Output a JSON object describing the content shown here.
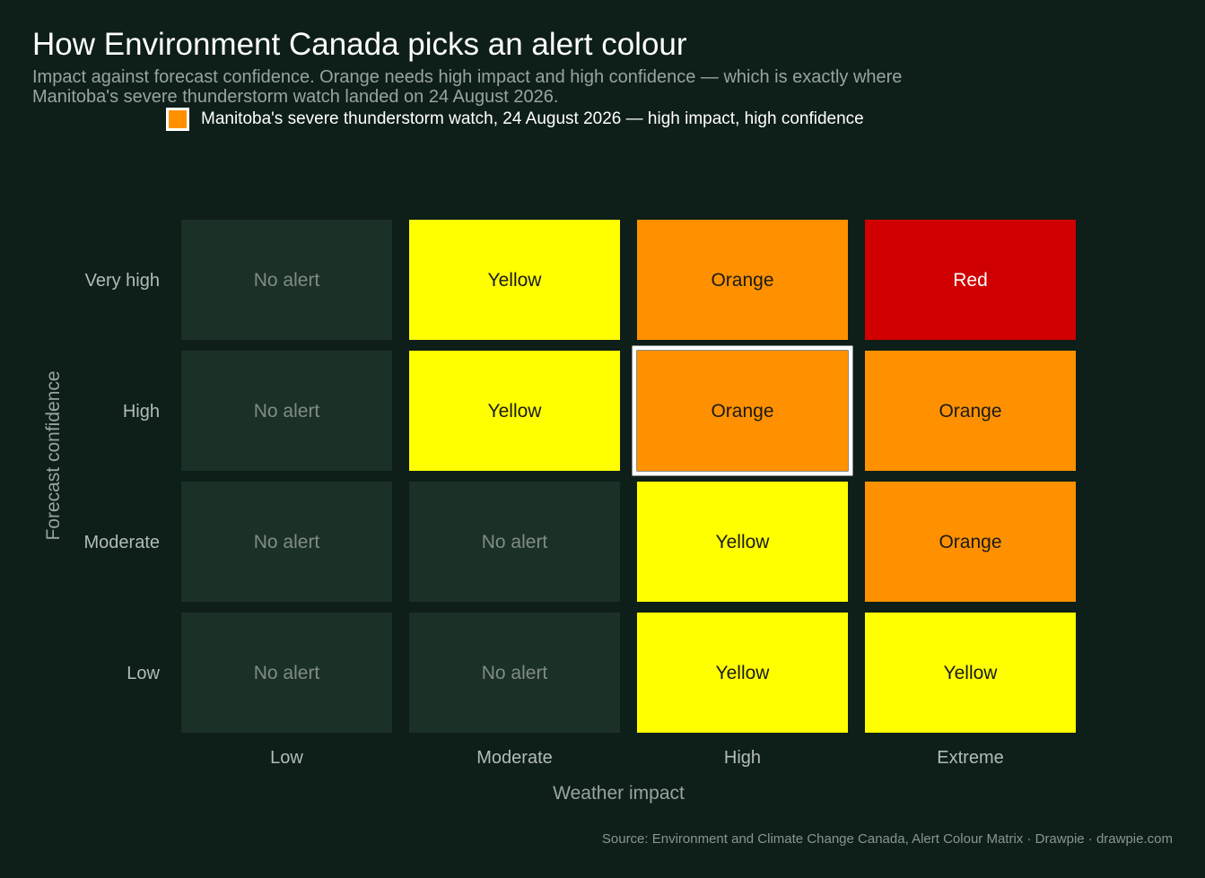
{
  "title": "How Environment Canada picks an alert colour",
  "subtitle": "Impact against forecast confidence. Orange needs high impact and high confidence — which is exactly where Manitoba's severe thunderstorm watch landed on 24 August 2026.",
  "legend": {
    "label": "Manitoba's severe thunderstorm watch, 24 August 2026 — high impact, high confidence",
    "swatch_color": "#ff9100"
  },
  "source": "Source: Environment and Climate Change Canada, Alert Colour Matrix  ·  Drawpie · drawpie.com",
  "colors": {
    "background": "#0e1e19",
    "No alert": "#1b3027",
    "Yellow": "#ffff00",
    "Orange": "#ff9100",
    "Red": "#d10000",
    "highlight": "#ffffff"
  },
  "chart_data": {
    "type": "heatmap",
    "xlabel": "Weather impact",
    "ylabel": "Forecast confidence",
    "x": [
      "Low",
      "Moderate",
      "High",
      "Extreme"
    ],
    "y": [
      "Very high",
      "High",
      "Moderate",
      "Low"
    ],
    "cells": [
      [
        "No alert",
        "Yellow",
        "Orange",
        "Red"
      ],
      [
        "No alert",
        "Yellow",
        "Orange",
        "Orange"
      ],
      [
        "No alert",
        "No alert",
        "Yellow",
        "Orange"
      ],
      [
        "No alert",
        "No alert",
        "Yellow",
        "Yellow"
      ]
    ],
    "highlight": {
      "x": "High",
      "y": "High"
    }
  }
}
